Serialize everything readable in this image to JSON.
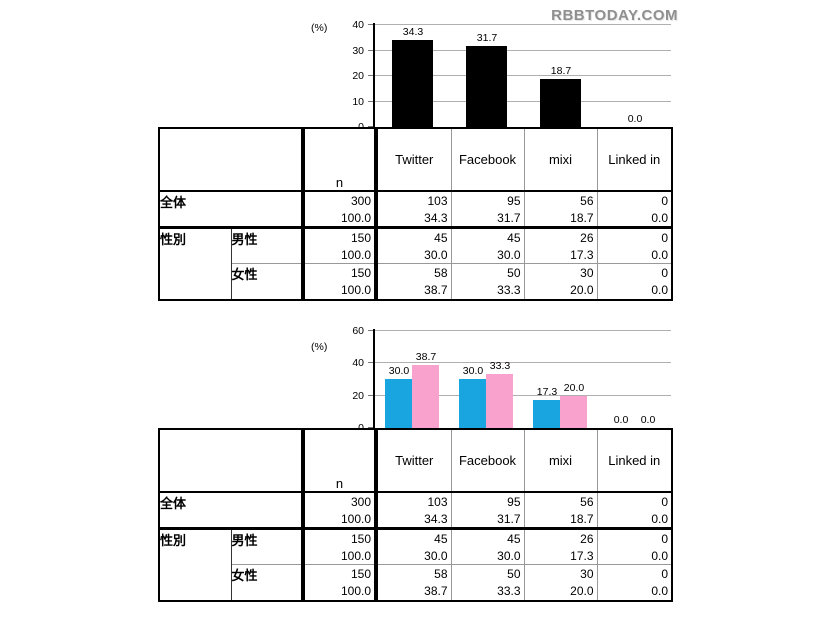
{
  "watermark": "RBBTODAY.COM",
  "chart_data": [
    {
      "type": "bar",
      "title": "",
      "categories": [
        "Twitter",
        "Facebook",
        "mixi",
        "Linked in"
      ],
      "series": [
        {
          "name": "全体",
          "color": "#000000",
          "values": [
            34.3,
            31.7,
            18.7,
            0.0
          ]
        }
      ],
      "bar_labels": [
        [
          "34.3",
          "31.7",
          "18.7",
          "0.0"
        ]
      ],
      "xlabel": "",
      "ylabel": "(%)",
      "ylim": [
        0,
        40
      ],
      "yticks": [
        0,
        10,
        20,
        30,
        40
      ],
      "grid": true,
      "legend": "none"
    },
    {
      "type": "bar",
      "title": "",
      "categories": [
        "Twitter",
        "Facebook",
        "mixi",
        "Linked in"
      ],
      "series": [
        {
          "name": "男性",
          "color": "#18a5e0",
          "values": [
            30.0,
            30.0,
            17.3,
            0.0
          ]
        },
        {
          "name": "女性",
          "color": "#f8a2cd",
          "values": [
            38.7,
            33.3,
            20.0,
            0.0
          ]
        }
      ],
      "bar_labels": [
        [
          "30.0",
          "30.0",
          "17.3",
          "0.0"
        ],
        [
          "38.7",
          "33.3",
          "20.0",
          "0.0"
        ]
      ],
      "xlabel": "",
      "ylabel": "(%)",
      "ylim": [
        0,
        60
      ],
      "yticks": [
        0,
        20,
        40,
        60
      ],
      "grid": true,
      "legend": "none"
    }
  ],
  "table": {
    "corner_label": "",
    "n_header": "n",
    "columns": [
      "Twitter",
      "Facebook",
      "mixi",
      "Linked in"
    ],
    "rows": [
      {
        "group": "全体",
        "sub": null,
        "n": "300",
        "n_pct": "100.0",
        "counts": [
          "103",
          "95",
          "56",
          "0"
        ],
        "pcts": [
          "34.3",
          "31.7",
          "18.7",
          "0.0"
        ]
      },
      {
        "group": "性別",
        "sub": "男性",
        "n": "150",
        "n_pct": "100.0",
        "counts": [
          "45",
          "45",
          "26",
          "0"
        ],
        "pcts": [
          "30.0",
          "30.0",
          "17.3",
          "0.0"
        ]
      },
      {
        "group": null,
        "sub": "女性",
        "n": "150",
        "n_pct": "100.0",
        "counts": [
          "58",
          "50",
          "30",
          "0"
        ],
        "pcts": [
          "38.7",
          "33.3",
          "20.0",
          "0.0"
        ]
      }
    ]
  }
}
